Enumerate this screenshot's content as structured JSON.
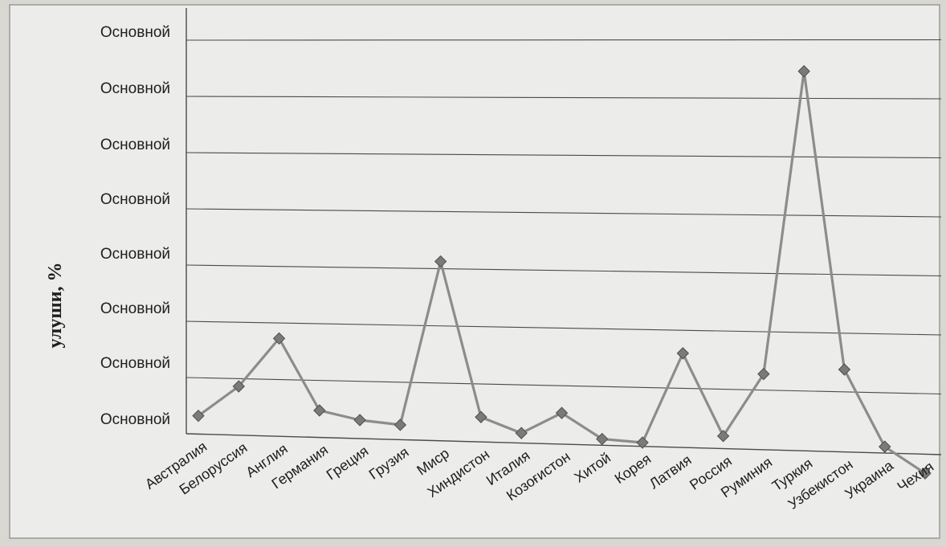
{
  "chart_data": {
    "type": "line",
    "ylabel": "улуши, %",
    "ytick_labels": [
      "Основной",
      "Основной",
      "Основной",
      "Основной",
      "Основной",
      "Основной",
      "Основной",
      "Основной"
    ],
    "ylim": [
      0,
      35
    ],
    "categories": [
      "Австралия",
      "Белоруссия",
      "Англия",
      "Германия",
      "Греция",
      "Грузия",
      "Миср",
      "Хиндистон",
      "Италия",
      "Козоғистон",
      "Хитой",
      "Корея",
      "Латвия",
      "Россия",
      "Руминия",
      "Туркия",
      "Узбекистон",
      "Украина",
      "Чехия"
    ],
    "series": [
      {
        "values": [
          1.5,
          4.0,
          8.0,
          2.2,
          1.5,
          1.2,
          14.5,
          2.0,
          0.8,
          2.5,
          0.5,
          0.3,
          7.5,
          1.0,
          6.0,
          30.0,
          6.5,
          0.5,
          -1.5
        ]
      }
    ],
    "grid": true,
    "marker_color": "#7a7a7a",
    "line_color": "#8c8c8c"
  }
}
